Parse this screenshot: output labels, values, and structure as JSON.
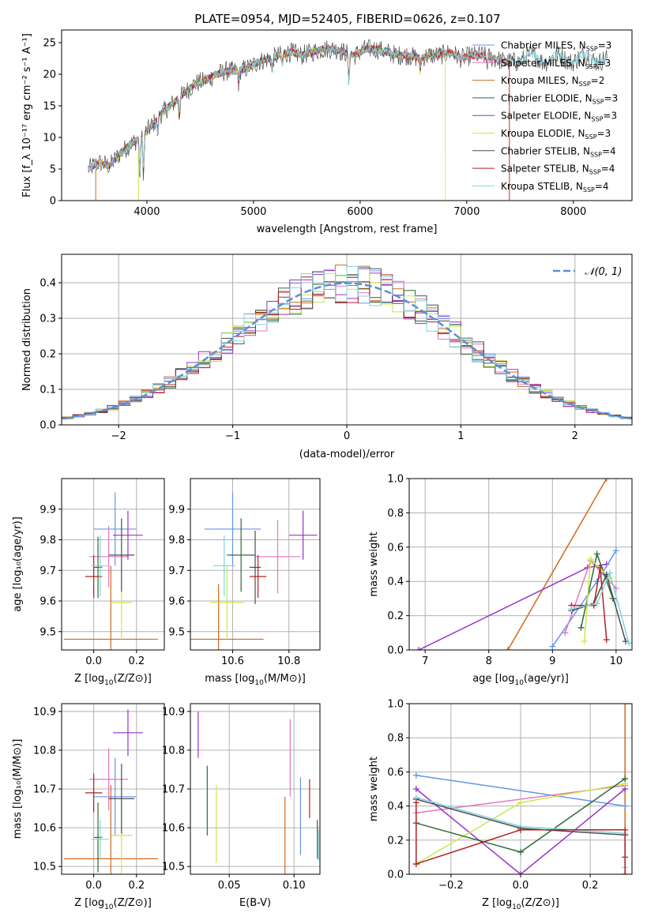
{
  "title": "PLATE=0954, MJD=52405, FIBERID=0626, z=0.107",
  "colors": {
    "chabrier_miles": "#6495ed",
    "salpeter_miles": "#e377c2",
    "kroupa_miles": "#d2691e",
    "chabrier_elodie": "#2e6b3a",
    "salpeter_elodie": "#9932cc",
    "kroupa_elodie": "#c8e84a",
    "chabrier_stelib": "#4d4d4d",
    "salpeter_stelib": "#b22222",
    "kroupa_stelib": "#7fd4e0",
    "gauss": "#5b8fd6",
    "grid": "#b0b0b0"
  },
  "chart_data": [
    {
      "id": "spectrum",
      "type": "line",
      "xlabel": "wavelength [Angstrom, rest frame]",
      "ylabel": "Flux [f_λ 10⁻¹⁷ erg cm⁻² s⁻¹ A⁻¹]",
      "xlim": [
        3200,
        8550
      ],
      "ylim": [
        0,
        27
      ],
      "xticks": [
        4000,
        5000,
        6000,
        7000,
        8000
      ],
      "yticks": [
        0,
        5,
        10,
        15,
        20,
        25
      ],
      "grid": false,
      "legend_position": "right",
      "data_x": [
        3450,
        3550,
        3650,
        3750,
        3850,
        3950,
        4050,
        4150,
        4250,
        4350,
        4450,
        4550,
        4650,
        4750,
        4850,
        4950,
        5050,
        5150,
        5250,
        5350,
        5450,
        5550,
        5650,
        5750,
        5850,
        5950,
        6050,
        6150,
        6250,
        6350,
        6450,
        6550,
        6650,
        6750,
        6850,
        6950,
        7050,
        7150,
        7250,
        7350,
        7450
      ],
      "data_y": [
        5.0,
        6.0,
        5.5,
        7.5,
        9.0,
        10.0,
        12.0,
        14.0,
        15.5,
        17.0,
        18.5,
        19.0,
        20.0,
        20.5,
        20.5,
        21.0,
        22.0,
        22.5,
        23.0,
        23.5,
        23.0,
        23.5,
        24.0,
        24.0,
        23.5,
        23.0,
        24.0,
        24.0,
        23.5,
        23.0,
        23.0,
        22.5,
        23.0,
        23.0,
        23.5,
        22.5,
        23.0,
        23.0,
        22.5,
        22.0,
        22.0
      ],
      "series": [
        {
          "name": "Chabrier MILES, N_SSP=3",
          "sub": "SSP",
          "name_main": "Chabrier MILES, N",
          "name_tail": "=3",
          "color": "chabrier_miles"
        },
        {
          "name": "Salpeter MILES, N_SSP=3",
          "sub": "SSP",
          "name_main": "Salpeter MILES, N",
          "name_tail": "=3",
          "color": "salpeter_miles"
        },
        {
          "name": "Kroupa MILES, N_SSP=2",
          "sub": "SSP",
          "name_main": "Kroupa MILES, N",
          "name_tail": "=2",
          "color": "kroupa_miles"
        },
        {
          "name": "Chabrier ELODIE, N_SSP=3",
          "sub": "SSP",
          "name_main": "Chabrier ELODIE, N",
          "name_tail": "=3",
          "color": "chabrier_elodie"
        },
        {
          "name": "Salpeter ELODIE, N_SSP=3",
          "sub": "SSP",
          "name_main": "Salpeter ELODIE, N",
          "name_tail": "=3",
          "color": "salpeter_elodie"
        },
        {
          "name": "Kroupa ELODIE, N_SSP=3",
          "sub": "SSP",
          "name_main": "Kroupa ELODIE, N",
          "name_tail": "=3",
          "color": "kroupa_elodie"
        },
        {
          "name": "Chabrier STELIB, N_SSP=4",
          "sub": "SSP",
          "name_main": "Chabrier STELIB, N",
          "name_tail": "=4",
          "color": "chabrier_stelib"
        },
        {
          "name": "Salpeter STELIB, N_SSP=4",
          "sub": "SSP",
          "name_main": "Salpeter STELIB, N",
          "name_tail": "=4",
          "color": "salpeter_stelib"
        },
        {
          "name": "Kroupa STELIB, N_SSP=4",
          "sub": "SSP",
          "name_main": "Kroupa STELIB, N",
          "name_tail": "=4",
          "color": "kroupa_stelib"
        }
      ]
    },
    {
      "id": "residuals",
      "type": "area",
      "xlabel": "(data-model)/error",
      "ylabel": "Normed distribution",
      "xlim": [
        -2.5,
        2.5
      ],
      "ylim": [
        0,
        0.48
      ],
      "xticks": [
        -2,
        -1,
        0,
        1,
        2
      ],
      "yticks": [
        0.0,
        0.1,
        0.2,
        0.3,
        0.4
      ],
      "grid": true,
      "legend_position": "top-right",
      "gauss_label": "𝒩(0, 1)",
      "bin_width": 0.1,
      "bin_start": -2.5
    },
    {
      "id": "age_vs_Z",
      "type": "scatter",
      "xlabel_main": "Z [log",
      "xlabel_sub": "10",
      "xlabel_tail": "(Z/Z⊙)]",
      "ylabel": "age  [log₁₀(age/yr)]",
      "xlim": [
        -0.15,
        0.33
      ],
      "ylim": [
        9.44,
        10.0
      ],
      "xticks": [
        0.0,
        0.2
      ],
      "yticks": [
        9.5,
        9.6,
        9.7,
        9.8,
        9.9
      ],
      "grid": true,
      "points": [
        {
          "color": "chabrier_miles",
          "x": 0.1,
          "xerr": 0.1,
          "y": 9.835,
          "yerr": 0.12
        },
        {
          "color": "salpeter_miles",
          "x": 0.07,
          "xerr": 0.09,
          "y": 9.745,
          "yerr": 0.1
        },
        {
          "color": "kroupa_miles",
          "x": 0.08,
          "xerr": 0.22,
          "y": 9.475,
          "yerr": 0.24
        },
        {
          "color": "chabrier_elodie",
          "x": 0.02,
          "xerr": 0.02,
          "y": 9.71,
          "yerr": 0.1
        },
        {
          "color": "salpeter_elodie",
          "x": 0.16,
          "xerr": 0.07,
          "y": 9.815,
          "yerr": 0.08
        },
        {
          "color": "kroupa_elodie",
          "x": 0.13,
          "xerr": 0.05,
          "y": 9.595,
          "yerr": 0.12
        },
        {
          "color": "chabrier_stelib",
          "x": 0.13,
          "xerr": 0.06,
          "y": 9.75,
          "yerr": 0.12
        },
        {
          "color": "salpeter_stelib",
          "x": 0.0,
          "xerr": 0.04,
          "y": 9.68,
          "yerr": 0.07
        },
        {
          "color": "kroupa_stelib",
          "x": 0.03,
          "xerr": 0.04,
          "y": 9.715,
          "yerr": 0.1
        }
      ]
    },
    {
      "id": "age_vs_mass",
      "type": "scatter",
      "xlabel_main": "mass [log",
      "xlabel_sub": "10",
      "xlabel_tail": "(M/M⊙)]",
      "xlim": [
        10.45,
        10.91
      ],
      "ylim": [
        9.44,
        10.0
      ],
      "xticks": [
        10.6,
        10.8
      ],
      "yticks": [
        9.5,
        9.6,
        9.7,
        9.8,
        9.9
      ],
      "grid": true,
      "points": [
        {
          "color": "chabrier_miles",
          "x": 10.6,
          "xerr": 0.1,
          "y": 9.835,
          "yerr": 0.12
        },
        {
          "color": "salpeter_miles",
          "x": 10.76,
          "xerr": 0.08,
          "y": 9.745,
          "yerr": 0.12
        },
        {
          "color": "kroupa_miles",
          "x": 10.55,
          "xerr": 0.16,
          "y": 9.475,
          "yerr": 0.18
        },
        {
          "color": "chabrier_elodie",
          "x": 10.63,
          "xerr": 0.05,
          "y": 9.75,
          "yerr": 0.12
        },
        {
          "color": "salpeter_elodie",
          "x": 10.85,
          "xerr": 0.05,
          "y": 9.815,
          "yerr": 0.08
        },
        {
          "color": "kroupa_elodie",
          "x": 10.58,
          "xerr": 0.06,
          "y": 9.595,
          "yerr": 0.12
        },
        {
          "color": "chabrier_stelib",
          "x": 10.68,
          "xerr": 0.02,
          "y": 9.71,
          "yerr": 0.12
        },
        {
          "color": "salpeter_stelib",
          "x": 10.69,
          "xerr": 0.03,
          "y": 9.68,
          "yerr": 0.07
        },
        {
          "color": "kroupa_stelib",
          "x": 10.57,
          "xerr": 0.04,
          "y": 9.715,
          "yerr": 0.1
        }
      ]
    },
    {
      "id": "weight_vs_age",
      "type": "line",
      "xlabel_main": "age  [log",
      "xlabel_sub": "10",
      "xlabel_tail": "(age/yr)]",
      "ylabel": "mass weight",
      "xlim": [
        6.75,
        10.25
      ],
      "ylim": [
        0,
        1.0
      ],
      "xticks": [
        7,
        8,
        9,
        10
      ],
      "yticks": [
        0.0,
        0.2,
        0.4,
        0.6,
        0.8,
        1.0
      ],
      "grid": true,
      "series": [
        {
          "color": "kroupa_miles",
          "x": [
            8.3,
            9.85
          ],
          "y": [
            0.0,
            1.0
          ]
        },
        {
          "color": "salpeter_elodie",
          "x": [
            6.9,
            9.55,
            9.85
          ],
          "y": [
            0.0,
            0.48,
            0.5
          ]
        },
        {
          "color": "chabrier_miles",
          "x": [
            9.0,
            9.7,
            10.0
          ],
          "y": [
            0.02,
            0.4,
            0.58
          ]
        },
        {
          "color": "salpeter_miles",
          "x": [
            9.2,
            9.6,
            10.0
          ],
          "y": [
            0.1,
            0.52,
            0.36
          ]
        },
        {
          "color": "chabrier_elodie",
          "x": [
            9.45,
            9.7,
            9.95
          ],
          "y": [
            0.13,
            0.56,
            0.3
          ]
        },
        {
          "color": "kroupa_elodie",
          "x": [
            9.5,
            9.6,
            9.9
          ],
          "y": [
            0.05,
            0.53,
            0.42
          ]
        },
        {
          "color": "chabrier_stelib",
          "x": [
            9.3,
            9.65,
            9.85,
            10.15
          ],
          "y": [
            0.23,
            0.27,
            0.44,
            0.05
          ]
        },
        {
          "color": "salpeter_stelib",
          "x": [
            9.3,
            9.65,
            9.75,
            9.85
          ],
          "y": [
            0.26,
            0.26,
            0.48,
            0.06
          ]
        },
        {
          "color": "kroupa_stelib",
          "x": [
            9.3,
            9.7,
            9.9,
            10.2
          ],
          "y": [
            0.24,
            0.27,
            0.45,
            0.04
          ]
        }
      ]
    },
    {
      "id": "mass_vs_Z",
      "type": "scatter",
      "xlabel_main": "Z [log",
      "xlabel_sub": "10",
      "xlabel_tail": "(Z/Z⊙)]",
      "ylabel": "mass [log₁₀(M/M⊙)]",
      "xlim": [
        -0.15,
        0.33
      ],
      "ylim": [
        10.48,
        10.92
      ],
      "xticks": [
        0.0,
        0.2
      ],
      "yticks": [
        10.5,
        10.6,
        10.7,
        10.8,
        10.9
      ],
      "grid": true,
      "points": [
        {
          "color": "chabrier_miles",
          "x": 0.1,
          "xerr": 0.1,
          "y": 10.68,
          "yerr": 0.1
        },
        {
          "color": "salpeter_miles",
          "x": 0.07,
          "xerr": 0.09,
          "y": 10.725,
          "yerr": 0.08
        },
        {
          "color": "kroupa_miles",
          "x": 0.08,
          "xerr": 0.22,
          "y": 10.52,
          "yerr": 0.19
        },
        {
          "color": "chabrier_elodie",
          "x": 0.02,
          "xerr": 0.02,
          "y": 10.575,
          "yerr": 0.09
        },
        {
          "color": "salpeter_elodie",
          "x": 0.16,
          "xerr": 0.07,
          "y": 10.845,
          "yerr": 0.06
        },
        {
          "color": "kroupa_elodie",
          "x": 0.13,
          "xerr": 0.05,
          "y": 10.58,
          "yerr": 0.12
        },
        {
          "color": "chabrier_stelib",
          "x": 0.13,
          "xerr": 0.06,
          "y": 10.675,
          "yerr": 0.09
        },
        {
          "color": "salpeter_stelib",
          "x": 0.0,
          "xerr": 0.04,
          "y": 10.69,
          "yerr": 0.05
        },
        {
          "color": "kroupa_stelib",
          "x": 0.03,
          "xerr": 0.04,
          "y": 10.57,
          "yerr": 0.05
        }
      ]
    },
    {
      "id": "mass_vs_ebv",
      "type": "scatter",
      "xlabel": "E(B-V)",
      "xlim": [
        0.02,
        0.12
      ],
      "ylim": [
        10.48,
        10.92
      ],
      "xticks": [
        0.05,
        0.1
      ],
      "xtick_labels": [
        "0.05",
        "0.10"
      ],
      "yticks": [
        10.5,
        10.6,
        10.7,
        10.8,
        10.9
      ],
      "grid": true,
      "points": [
        {
          "color": "chabrier_miles",
          "x": 0.105,
          "y": 10.63,
          "yerr": 0.1
        },
        {
          "color": "salpeter_miles",
          "x": 0.097,
          "y": 10.78,
          "yerr": 0.1
        },
        {
          "color": "kroupa_miles",
          "x": 0.093,
          "y": 10.58,
          "yerr": 0.1
        },
        {
          "color": "chabrier_elodie",
          "x": 0.033,
          "y": 10.67,
          "yerr": 0.09
        },
        {
          "color": "salpeter_elodie",
          "x": 0.026,
          "y": 10.84,
          "yerr": 0.06
        },
        {
          "color": "kroupa_elodie",
          "x": 0.04,
          "y": 10.61,
          "yerr": 0.1
        },
        {
          "color": "chabrier_stelib",
          "x": 0.118,
          "y": 10.57,
          "yerr": 0.05
        },
        {
          "color": "salpeter_stelib",
          "x": 0.112,
          "y": 10.675,
          "yerr": 0.05
        },
        {
          "color": "kroupa_stelib",
          "x": 0.119,
          "y": 10.555,
          "yerr": 0.04
        }
      ]
    },
    {
      "id": "weight_vs_Z",
      "type": "line",
      "xlabel_main": "Z [log",
      "xlabel_sub": "10",
      "xlabel_tail": "(Z/Z⊙)]",
      "ylabel": "mass weight",
      "xlim": [
        -0.32,
        0.32
      ],
      "ylim": [
        0,
        1.0
      ],
      "xticks": [
        -0.2,
        0.0,
        0.2
      ],
      "yticks": [
        0.0,
        0.2,
        0.4,
        0.6,
        0.8,
        1.0
      ],
      "grid": true,
      "series": [
        {
          "color": "kroupa_miles",
          "x": [
            0.3,
            0.3
          ],
          "y": [
            0.0,
            1.0
          ]
        },
        {
          "color": "chabrier_miles",
          "x": [
            -0.3,
            0.3
          ],
          "y": [
            0.58,
            0.4
          ]
        },
        {
          "color": "salpeter_miles",
          "x": [
            -0.3,
            0.3
          ],
          "y": [
            0.36,
            0.52
          ]
        },
        {
          "color": "salpeter_elodie",
          "x": [
            -0.3,
            0.0,
            0.3
          ],
          "y": [
            0.5,
            0.0,
            0.5
          ]
        },
        {
          "color": "kroupa_elodie",
          "x": [
            -0.3,
            0.0,
            0.3
          ],
          "y": [
            0.06,
            0.42,
            0.53
          ]
        },
        {
          "color": "chabrier_elodie",
          "x": [
            -0.3,
            0.0,
            0.3
          ],
          "y": [
            0.3,
            0.13,
            0.56
          ]
        },
        {
          "color": "chabrier_stelib",
          "x": [
            -0.3,
            0.0,
            0.3,
            0.3
          ],
          "y": [
            0.44,
            0.27,
            0.23,
            0.1
          ]
        },
        {
          "color": "kroupa_stelib",
          "x": [
            -0.3,
            0.0,
            0.3,
            0.3
          ],
          "y": [
            0.45,
            0.28,
            0.24,
            0.04
          ]
        },
        {
          "color": "salpeter_stelib",
          "x": [
            -0.3,
            -0.3,
            0.0,
            0.3,
            0.3
          ],
          "y": [
            0.42,
            0.06,
            0.26,
            0.26,
            0.0
          ]
        }
      ]
    }
  ]
}
